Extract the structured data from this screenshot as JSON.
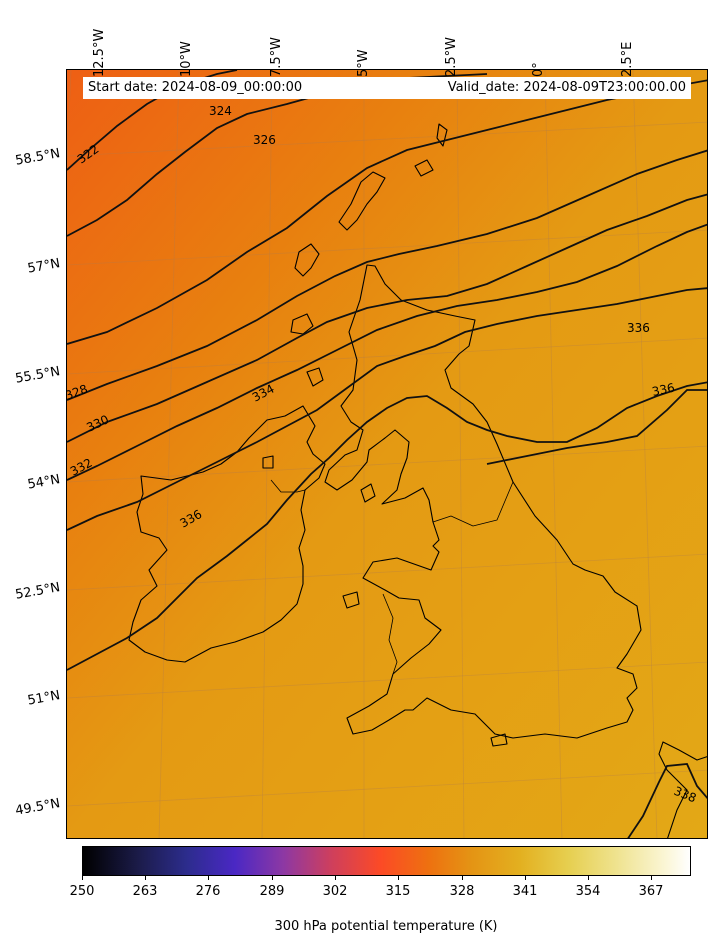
{
  "map": {
    "start_date": "Start date: 2024-08-09_00:00:00",
    "valid_date": "Valid_date: 2024-08-09T23:00:00.00",
    "lon_labels": [
      "12.5°W",
      "10°W",
      "7.5°W",
      "5°W",
      "2.5°W",
      "0°",
      "2.5°E"
    ],
    "lat_labels": [
      "58.5°N",
      "57°N",
      "55.5°N",
      "54°N",
      "52.5°N",
      "51°N",
      "49.5°N"
    ],
    "contour_labels": [
      "322",
      "324",
      "326",
      "328",
      "330",
      "332",
      "334",
      "336",
      "336",
      "336",
      "338"
    ],
    "colors": {
      "warm_orange": "#ee6a12",
      "mid_orange": "#e58f12",
      "amber": "#e4a316",
      "coastline": "#000000"
    }
  },
  "colorbar": {
    "ticks": [
      "250",
      "263",
      "276",
      "289",
      "302",
      "315",
      "328",
      "341",
      "354",
      "367"
    ],
    "title": "300 hPa potential temperature (K)",
    "cmap": "CMRmap"
  }
}
